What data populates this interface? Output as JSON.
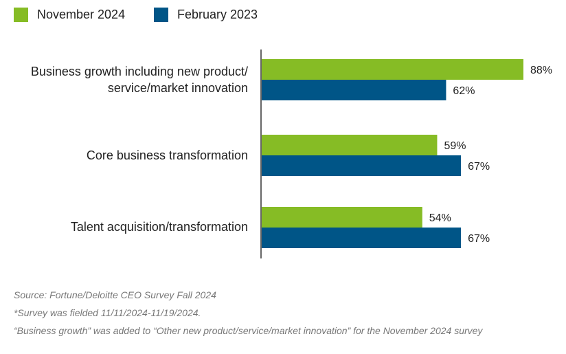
{
  "chart_data": {
    "type": "bar",
    "orientation": "horizontal",
    "title": "",
    "xlabel": "",
    "ylabel": "",
    "xlim": [
      0,
      100
    ],
    "grid": false,
    "legend_position": "top-left",
    "categories": [
      "Business growth including new product/ service/market innovation",
      "Core business transformation",
      "Talent acquisition/transformation"
    ],
    "category_lines": [
      [
        "Business growth including new product/",
        "service/market innovation"
      ],
      [
        "Core business transformation"
      ],
      [
        "Talent acquisition/transformation"
      ]
    ],
    "series": [
      {
        "name": "November 2024",
        "color": "#86bc25",
        "values": [
          88,
          59,
          54
        ],
        "labels": [
          "88%",
          "59%",
          "54%"
        ]
      },
      {
        "name": "February 2023",
        "color": "#005587",
        "values": [
          62,
          67,
          67
        ],
        "labels": [
          "62%",
          "67%",
          "67%"
        ]
      }
    ]
  },
  "footnotes": {
    "source": "Source: Fortune/Deloitte CEO Survey Fall 2024",
    "survey_note": "*Survey was fielded 11/11/2024-11/19/2024.",
    "change_note": "“Business growth” was added  to “Other new product/service/market innovation” for the November 2024 survey"
  }
}
